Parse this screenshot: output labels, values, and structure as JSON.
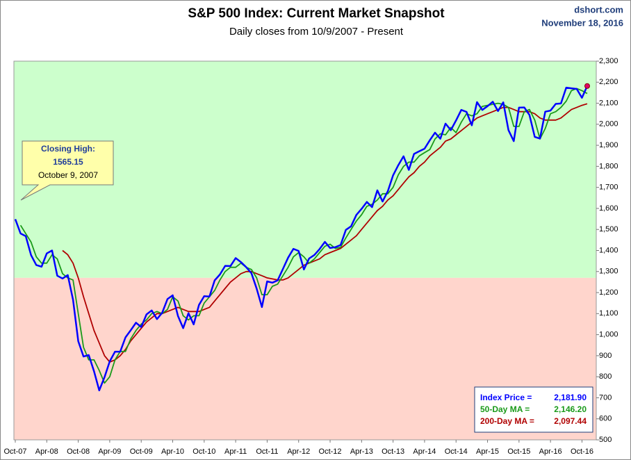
{
  "chart_data": {
    "type": "line",
    "title": "S&P 500 Index: Current Market Snapshot",
    "subtitle": "Daily closes from 10/9/2007 - Present",
    "source": "dshort.com",
    "date": "November 18, 2016",
    "x": [
      "2007-10",
      "2007-11",
      "2007-12",
      "2008-01",
      "2008-02",
      "2008-03",
      "2008-04",
      "2008-05",
      "2008-06",
      "2008-07",
      "2008-08",
      "2008-09",
      "2008-10",
      "2008-11",
      "2008-12",
      "2009-01",
      "2009-02",
      "2009-03",
      "2009-04",
      "2009-05",
      "2009-06",
      "2009-07",
      "2009-08",
      "2009-09",
      "2009-10",
      "2009-11",
      "2009-12",
      "2010-01",
      "2010-02",
      "2010-03",
      "2010-04",
      "2010-05",
      "2010-06",
      "2010-07",
      "2010-08",
      "2010-09",
      "2010-10",
      "2010-11",
      "2010-12",
      "2011-01",
      "2011-02",
      "2011-03",
      "2011-04",
      "2011-05",
      "2011-06",
      "2011-07",
      "2011-08",
      "2011-09",
      "2011-10",
      "2011-11",
      "2011-12",
      "2012-01",
      "2012-02",
      "2012-03",
      "2012-04",
      "2012-05",
      "2012-06",
      "2012-07",
      "2012-08",
      "2012-09",
      "2012-10",
      "2012-11",
      "2012-12",
      "2013-01",
      "2013-02",
      "2013-03",
      "2013-04",
      "2013-05",
      "2013-06",
      "2013-07",
      "2013-08",
      "2013-09",
      "2013-10",
      "2013-11",
      "2013-12",
      "2014-01",
      "2014-02",
      "2014-03",
      "2014-04",
      "2014-05",
      "2014-06",
      "2014-07",
      "2014-08",
      "2014-09",
      "2014-10",
      "2014-11",
      "2014-12",
      "2015-01",
      "2015-02",
      "2015-03",
      "2015-04",
      "2015-05",
      "2015-06",
      "2015-07",
      "2015-08",
      "2015-09",
      "2015-10",
      "2015-11",
      "2015-12",
      "2016-01",
      "2016-02",
      "2016-03",
      "2016-04",
      "2016-05",
      "2016-06",
      "2016-07",
      "2016-08",
      "2016-09",
      "2016-10",
      "2016-11"
    ],
    "series": [
      {
        "color": "#0000ff",
        "width": 2.5,
        "values": [
          1549,
          1481,
          1468,
          1378,
          1331,
          1323,
          1386,
          1400,
          1280,
          1267,
          1283,
          1166,
          969,
          896,
          903,
          826,
          735,
          798,
          873,
          919,
          919,
          987,
          1021,
          1057,
          1036,
          1096,
          1115,
          1074,
          1104,
          1169,
          1187,
          1089,
          1031,
          1102,
          1049,
          1141,
          1183,
          1181,
          1258,
          1286,
          1327,
          1326,
          1364,
          1345,
          1321,
          1292,
          1219,
          1131,
          1253,
          1247,
          1258,
          1312,
          1366,
          1408,
          1398,
          1310,
          1362,
          1379,
          1407,
          1441,
          1412,
          1416,
          1426,
          1498,
          1515,
          1569,
          1598,
          1631,
          1606,
          1686,
          1633,
          1682,
          1757,
          1806,
          1848,
          1783,
          1859,
          1872,
          1884,
          1924,
          1960,
          1931,
          2003,
          1972,
          2018,
          2068,
          2059,
          1995,
          2105,
          2068,
          2086,
          2107,
          2063,
          2104,
          1972,
          1920,
          2079,
          2080,
          2044,
          1940,
          1932,
          2060,
          2065,
          2097,
          2099,
          2174,
          2171,
          2168,
          2126,
          2181.9
        ]
      },
      {
        "color": "#1a9a1a",
        "width": 1.8,
        "values": [
          null,
          1520,
          1480,
          1440,
          1370,
          1340,
          1340,
          1380,
          1360,
          1290,
          1270,
          1260,
          1100,
          940,
          880,
          880,
          830,
          770,
          800,
          880,
          920,
          920,
          980,
          1020,
          1050,
          1070,
          1100,
          1110,
          1100,
          1120,
          1180,
          1160,
          1090,
          1070,
          1090,
          1090,
          1150,
          1180,
          1210,
          1260,
          1300,
          1320,
          1320,
          1340,
          1320,
          1310,
          1270,
          1190,
          1190,
          1230,
          1240,
          1280,
          1320,
          1370,
          1390,
          1370,
          1340,
          1360,
          1390,
          1420,
          1430,
          1410,
          1415,
          1460,
          1500,
          1540,
          1570,
          1610,
          1620,
          1640,
          1670,
          1670,
          1700,
          1760,
          1800,
          1820,
          1820,
          1850,
          1865,
          1880,
          1930,
          1955,
          1950,
          1985,
          1960,
          2010,
          2050,
          2040,
          2050,
          2085,
          2090,
          2095,
          2100,
          2095,
          2080,
          1990,
          1990,
          2060,
          2070,
          2020,
          1930,
          1980,
          2050,
          2060,
          2080,
          2110,
          2160,
          2170,
          2160,
          2146.2
        ]
      },
      {
        "color": "#b00000",
        "width": 1.8,
        "values": [
          null,
          null,
          null,
          null,
          null,
          null,
          null,
          null,
          null,
          1400,
          1380,
          1340,
          1270,
          1180,
          1100,
          1020,
          960,
          900,
          870,
          880,
          900,
          930,
          970,
          1000,
          1030,
          1060,
          1080,
          1100,
          1100,
          1110,
          1120,
          1130,
          1120,
          1110,
          1110,
          1110,
          1120,
          1130,
          1160,
          1190,
          1220,
          1250,
          1270,
          1290,
          1300,
          1300,
          1290,
          1280,
          1270,
          1265,
          1260,
          1260,
          1270,
          1290,
          1310,
          1330,
          1340,
          1350,
          1360,
          1380,
          1390,
          1400,
          1410,
          1430,
          1450,
          1470,
          1500,
          1530,
          1560,
          1590,
          1610,
          1640,
          1660,
          1690,
          1720,
          1750,
          1770,
          1800,
          1820,
          1850,
          1870,
          1890,
          1920,
          1930,
          1950,
          1970,
          1990,
          2010,
          2030,
          2040,
          2050,
          2060,
          2070,
          2080,
          2080,
          2070,
          2060,
          2060,
          2060,
          2050,
          2030,
          2020,
          2020,
          2020,
          2030,
          2050,
          2070,
          2080,
          2090,
          2097.44
        ]
      }
    ],
    "end_marker_color": "#e0006a",
    "ylim": [
      500,
      2300
    ],
    "yticks": [
      500,
      600,
      700,
      800,
      900,
      {
        "value": 1000,
        "label": "1,000"
      },
      {
        "value": 1100,
        "label": "1,100"
      },
      {
        "value": 1200,
        "label": "1,200"
      },
      {
        "value": 1300,
        "label": "1,300"
      },
      {
        "value": 1400,
        "label": "1,400"
      },
      {
        "value": 1500,
        "label": "1,500"
      },
      {
        "value": 1600,
        "label": "1,600"
      },
      {
        "value": 1700,
        "label": "1,700"
      },
      {
        "value": 1800,
        "label": "1,800"
      },
      {
        "value": 1900,
        "label": "1,900"
      },
      {
        "value": 2000,
        "label": "2,000"
      },
      {
        "value": 2100,
        "label": "2,100"
      },
      {
        "value": 2200,
        "label": "2,200"
      },
      {
        "value": 2300,
        "label": "2,300"
      }
    ],
    "xticks": [
      {
        "value": "2007-10",
        "label": "Oct-07"
      },
      {
        "value": "2008-04",
        "label": "Apr-08"
      },
      {
        "value": "2008-10",
        "label": "Oct-08"
      },
      {
        "value": "2009-04",
        "label": "Apr-09"
      },
      {
        "value": "2009-10",
        "label": "Oct-09"
      },
      {
        "value": "2010-04",
        "label": "Apr-10"
      },
      {
        "value": "2010-10",
        "label": "Oct-10"
      },
      {
        "value": "2011-04",
        "label": "Apr-11"
      },
      {
        "value": "2011-10",
        "label": "Oct-11"
      },
      {
        "value": "2012-04",
        "label": "Apr-12"
      },
      {
        "value": "2012-10",
        "label": "Oct-12"
      },
      {
        "value": "2013-04",
        "label": "Apr-13"
      },
      {
        "value": "2013-10",
        "label": "Oct-13"
      },
      {
        "value": "2014-04",
        "label": "Apr-14"
      },
      {
        "value": "2014-10",
        "label": "Oct-14"
      },
      {
        "value": "2015-04",
        "label": "Apr-15"
      },
      {
        "value": "2015-10",
        "label": "Oct-15"
      },
      {
        "value": "2016-04",
        "label": "Apr-16"
      },
      {
        "value": "2016-10",
        "label": "Oct-16"
      }
    ],
    "zone_threshold": 1270,
    "zone_colors": {
      "above": "#ccffcc",
      "below": "#ffd5cc"
    },
    "callout": {
      "lines": [
        "Closing High:",
        "1565.15",
        "October 9, 2007"
      ]
    },
    "readout": [
      {
        "label": "Index Price =",
        "value": 2181.9,
        "value_label": "2,181.90",
        "color": "#0000ff"
      },
      {
        "label": "50-Day MA =",
        "value": 2146.2,
        "value_label": "2,146.20",
        "color": "#1a9a1a"
      },
      {
        "label": "200-Day MA =",
        "value": 2097.44,
        "value_label": "2,097.44",
        "color": "#b00000"
      }
    ]
  }
}
